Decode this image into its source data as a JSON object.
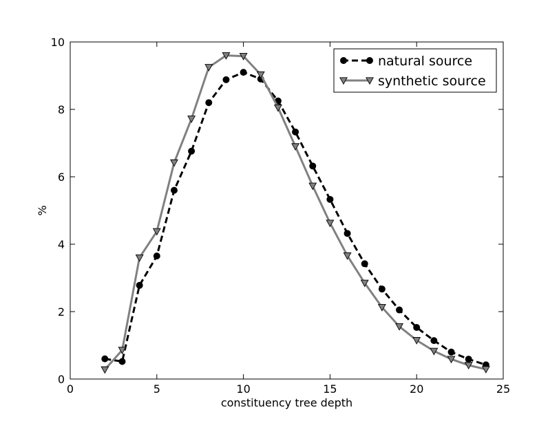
{
  "chart_data": {
    "type": "line",
    "xlabel": "constituency tree depth",
    "ylabel": "%",
    "xlim": [
      0,
      25
    ],
    "ylim": [
      0,
      10
    ],
    "xticks": [
      0,
      5,
      10,
      15,
      20,
      25
    ],
    "yticks": [
      0,
      2,
      4,
      6,
      8,
      10
    ],
    "grid": false,
    "legend": "top-right",
    "x": [
      2,
      3,
      4,
      5,
      6,
      7,
      8,
      9,
      10,
      11,
      12,
      13,
      14,
      15,
      16,
      17,
      18,
      19,
      20,
      21,
      22,
      23,
      24
    ],
    "series": [
      {
        "name": "natural source",
        "color": "#000000",
        "line_style": "dashed",
        "marker": "circle",
        "values": [
          0.6,
          0.52,
          2.78,
          3.65,
          5.6,
          6.76,
          8.2,
          8.88,
          9.1,
          8.9,
          8.25,
          7.33,
          6.32,
          5.33,
          4.32,
          3.42,
          2.67,
          2.05,
          1.53,
          1.14,
          0.8,
          0.59,
          0.42
        ]
      },
      {
        "name": "synthetic source",
        "color": "#808080",
        "line_style": "solid",
        "marker": "triangle-down",
        "values": [
          0.28,
          0.86,
          3.6,
          4.38,
          6.42,
          7.72,
          9.25,
          9.6,
          9.58,
          9.03,
          8.05,
          6.9,
          5.73,
          4.63,
          3.66,
          2.85,
          2.13,
          1.56,
          1.15,
          0.83,
          0.59,
          0.41,
          0.29
        ]
      }
    ]
  }
}
